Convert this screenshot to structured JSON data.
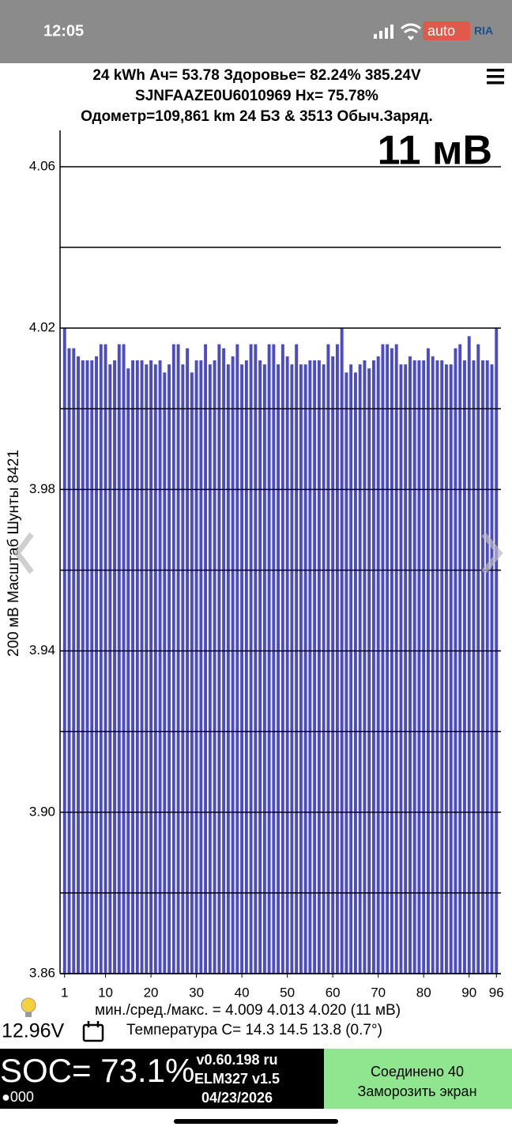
{
  "status_bar": {
    "time": "12:05",
    "watermark": [
      "auto",
      "RIA"
    ]
  },
  "header": {
    "line1": "24 kWh  Ач= 53.78  Здоровье= 82.24%   385.24V",
    "line2": "SJNFAAZE0U6010969   Hx= 75.78%",
    "line3": "Одометр=109,861 km 24 БЗ & 3513 Обыч.Заряд."
  },
  "chart_data": {
    "type": "bar",
    "annotation": "11 мВ",
    "ylabel": "200 мВ Масштаб  Шунты 8421",
    "color": "#4b4bc6",
    "x": [
      1,
      2,
      3,
      4,
      5,
      6,
      7,
      8,
      9,
      10,
      11,
      12,
      13,
      14,
      15,
      16,
      17,
      18,
      19,
      20,
      21,
      22,
      23,
      24,
      25,
      26,
      27,
      28,
      29,
      30,
      31,
      32,
      33,
      34,
      35,
      36,
      37,
      38,
      39,
      40,
      41,
      42,
      43,
      44,
      45,
      46,
      47,
      48,
      49,
      50,
      51,
      52,
      53,
      54,
      55,
      56,
      57,
      58,
      59,
      60,
      61,
      62,
      63,
      64,
      65,
      66,
      67,
      68,
      69,
      70,
      71,
      72,
      73,
      74,
      75,
      76,
      77,
      78,
      79,
      80,
      81,
      82,
      83,
      84,
      85,
      86,
      87,
      88,
      89,
      90,
      91,
      92,
      93,
      94,
      95,
      96
    ],
    "values": [
      4.02,
      4.015,
      4.015,
      4.013,
      4.012,
      4.012,
      4.012,
      4.013,
      4.016,
      4.016,
      4.011,
      4.012,
      4.016,
      4.016,
      4.01,
      4.012,
      4.012,
      4.012,
      4.011,
      4.012,
      4.011,
      4.012,
      4.009,
      4.011,
      4.016,
      4.016,
      4.011,
      4.015,
      4.009,
      4.012,
      4.012,
      4.016,
      4.011,
      4.012,
      4.016,
      4.015,
      4.011,
      4.013,
      4.016,
      4.011,
      4.012,
      4.016,
      4.016,
      4.012,
      4.011,
      4.016,
      4.016,
      4.011,
      4.016,
      4.013,
      4.011,
      4.016,
      4.011,
      4.011,
      4.012,
      4.012,
      4.012,
      4.011,
      4.016,
      4.013,
      4.016,
      4.02,
      4.009,
      4.011,
      4.009,
      4.011,
      4.012,
      4.01,
      4.012,
      4.013,
      4.016,
      4.016,
      4.015,
      4.016,
      4.011,
      4.011,
      4.013,
      4.012,
      4.012,
      4.012,
      4.015,
      4.013,
      4.012,
      4.012,
      4.011,
      4.011,
      4.015,
      4.016,
      4.012,
      4.018,
      4.012,
      4.016,
      4.012,
      4.012,
      4.011,
      4.02
    ],
    "xlim": [
      0,
      97
    ],
    "xticks": [
      1,
      10,
      20,
      30,
      40,
      50,
      60,
      70,
      80,
      90,
      96
    ],
    "ylim": [
      3.86,
      4.069
    ],
    "yticks": [
      3.86,
      {
        "value": 3.9,
        "label": "3.90"
      },
      3.94,
      3.98,
      4.02,
      4.06
    ],
    "minor_yticks": [
      3.88,
      3.92,
      3.96,
      4.0,
      4.04
    ],
    "grid": true
  },
  "footer": {
    "stats": "мин./сред./макс. = 4.009 4.013 4.020  (11 мВ)",
    "voltage": "12.96V",
    "temperature": "Температура С= 14.3  14.5  13.8  (0.7°)"
  },
  "bottom_bar": {
    "soc": "SOC= 73.1%",
    "dots": "●000",
    "version": "v0.60.198 ru",
    "adapter": "ELM327 v1.5",
    "date": "04/23/2026",
    "button_line1": "Соединено 40",
    "button_line2": "Заморозить экран"
  }
}
